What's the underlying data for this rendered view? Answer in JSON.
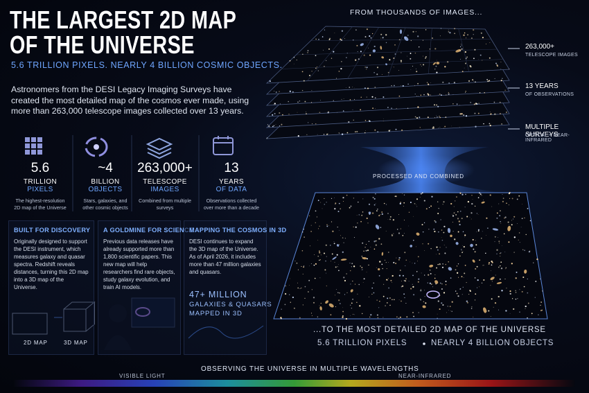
{
  "header": {
    "title_line1": "THE LARGEST 2D MAP",
    "title_line2": "OF THE UNIVERSE",
    "subtitle": "5.6 TRILLION PIXELS. NEARLY 4 BILLION COSMIC OBJECTS.",
    "intro": "Astronomers from the DESI Legacy Imaging Surveys have created the most detailed map of the cosmos ever made, using more than 263,000 telescope images collected over 13 years."
  },
  "stats": [
    {
      "number": "5.6",
      "label_line1": "TRILLION",
      "label_line2": "PIXELS",
      "note": "The highest-resolution 2D map of the Universe"
    },
    {
      "number": "~4",
      "label_line1": "BILLION",
      "label_line2": "OBJECTS",
      "note": "Stars, galaxies, and other cosmic objects"
    },
    {
      "number": "263,000+",
      "label_line1": "TELESCOPE",
      "label_line2": "IMAGES",
      "note": "Combined from multiple surveys"
    },
    {
      "number": "13",
      "label_line1": "YEARS",
      "label_line2": "OF DATA",
      "note": "Observations collected over more than a decade"
    }
  ],
  "panels": [
    {
      "title": "BUILT FOR DISCOVERY",
      "body": "Originally designed to support the DESI instrument, which measures galaxy and quasar spectra. Redshift reveals distances, turning this 2D map into a 3D map of the Universe.",
      "caption_left": "2D MAP",
      "caption_right": "3D MAP"
    },
    {
      "title": "A GOLDMINE FOR SCIENCE",
      "body": "Previous data releases have already supported more than 1,800 scientific papers. This new map will help researchers find rare objects, study galaxy evolution, and train AI models."
    },
    {
      "title": "MAPPING THE COSMOS IN 3D",
      "body": "DESI continues to expand the 3D map of the Universe. As of April 2026, it includes more than 47 million galaxies and quasars.",
      "highlight_number": "47+ MILLION",
      "highlight_line1": "GALAXIES & QUASARS",
      "highlight_line2": "MAPPED IN 3D"
    }
  ],
  "diagram": {
    "top_caption": "FROM THOUSANDS OF IMAGES...",
    "callouts": [
      {
        "title": "263,000+",
        "subtitle": "TELESCOPE IMAGES"
      },
      {
        "title": "13 YEARS",
        "subtitle": "OF OBSERVATIONS"
      },
      {
        "title": "MULTIPLE SURVEYS",
        "subtitle": "OPTICAL + NEAR-INFRARED"
      }
    ],
    "middle_caption": "PROCESSED AND COMBINED",
    "bottom_caption": "...TO THE MOST DETAILED 2D MAP OF THE UNIVERSE",
    "stat_left": "5.6 TRILLION PIXELS",
    "stat_right": "NEARLY 4 BILLION OBJECTS"
  },
  "footer": {
    "title": "OBSERVING THE UNIVERSE IN MULTIPLE WAVELENGTHS",
    "left_label": "VISIBLE LIGHT",
    "right_label": "NEAR-INFRARED"
  }
}
